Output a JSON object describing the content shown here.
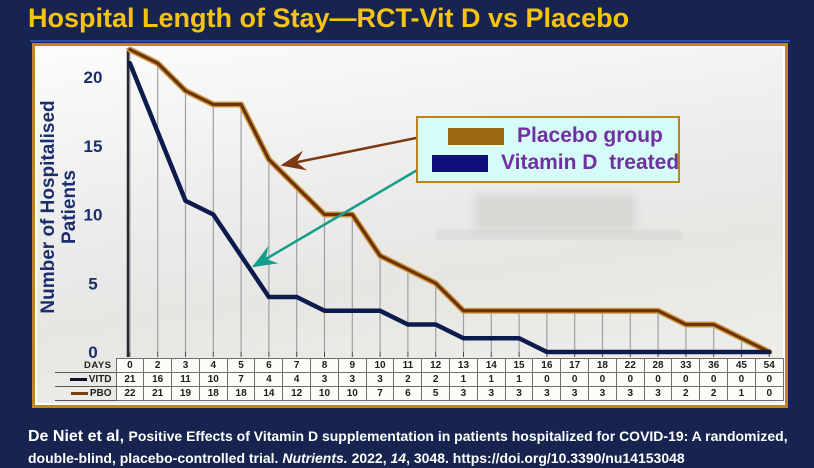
{
  "slide": {
    "title": "Hospital Length of Stay—RCT-Vit D vs Placebo",
    "colors": {
      "background": "#16244f",
      "title": "#f6c313",
      "panel_border": "#bf861e",
      "separator_blue": "#2e4da8",
      "axis_text": "#1b2d6b",
      "gridline": "#a0a0a4"
    }
  },
  "chart_data": {
    "type": "line",
    "x": [
      0,
      2,
      3,
      4,
      5,
      6,
      7,
      8,
      9,
      10,
      11,
      12,
      13,
      14,
      15,
      16,
      17,
      18,
      22,
      28,
      33,
      36,
      45,
      54
    ],
    "series": [
      {
        "name": "PBO",
        "legend_label": "Placebo group",
        "color": "#6e3409",
        "halo_color": "#cf9a45",
        "values": [
          22,
          21,
          19,
          18,
          18,
          14,
          12,
          10,
          10,
          7,
          6,
          5,
          3,
          3,
          3,
          3,
          3,
          3,
          3,
          3,
          2,
          2,
          1,
          0
        ]
      },
      {
        "name": "VITD",
        "legend_label": "Vitamin D  treated",
        "color": "#0d1a4e",
        "halo_color": "#0d1a4e",
        "values": [
          21,
          16,
          11,
          10,
          7,
          4,
          4,
          3,
          3,
          3,
          2,
          2,
          1,
          1,
          1,
          0,
          0,
          0,
          0,
          0,
          0,
          0,
          0,
          0
        ]
      }
    ],
    "ylabel": "Number of Hospitalised Patients",
    "xlabel": "Days",
    "ylim": [
      0,
      22
    ],
    "yticks": [
      0,
      5,
      10,
      15,
      20
    ],
    "grid": "vertical drop lines up to Placebo series at every day",
    "legend_position": "upper right boxed legend with arrows to each curve"
  },
  "legend": {
    "bg": "#d5fcf8",
    "border": "#b8861d",
    "text_color": "#7030a0",
    "items": [
      {
        "label": "Placebo group",
        "swatch_color": "#9c6710"
      },
      {
        "label": "Vitamin D  treated",
        "swatch_color": "#0d107a"
      }
    ],
    "arrows": [
      {
        "color": "#7b3a12",
        "target": "placebo-line"
      },
      {
        "color": "#149e8c",
        "target": "vitamin-d-line"
      }
    ]
  },
  "table": {
    "row_labels": [
      "Days",
      "VITD",
      "PBO"
    ],
    "vitd_swatch_color": "#10102e",
    "pbo_swatch_color": "#7b3f10"
  },
  "citation": {
    "author": "De Niet et al, ",
    "body": "Positive Effects of Vitamin D supplementation in patients hospitalized for COVID-19: A randomized, double-blind, placebo-controlled trial. ",
    "journal": "Nutrients.",
    "year": "  2022, ",
    "volume": "14",
    "pages": ", 3048.",
    "doi": "    https://doi.org/10.3390/nu14153048"
  }
}
